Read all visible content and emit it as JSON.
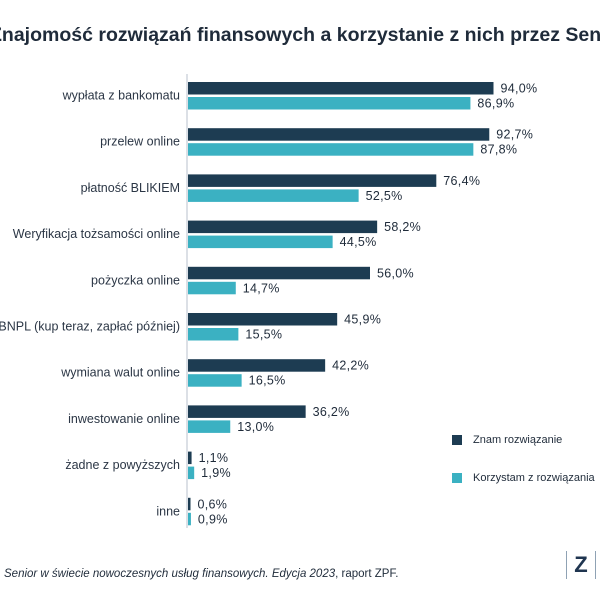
{
  "title": "Znajomość rozwiązań finansowych a korzystanie z nich przez Seniorów",
  "chart_data": {
    "type": "bar",
    "orientation": "horizontal",
    "title": "Znajomość rozwiązań finansowych a korzystanie z nich przez Seniorów",
    "categories": [
      "wypłata z bankomatu",
      "przelew online",
      "płatność BLIKIEM",
      "Weryfikacja tożsamości online",
      "pożyczka online",
      "BNPL (kup teraz, zapłać później)",
      "wymiana walut online",
      "inwestowanie online",
      "żadne z powyższych",
      "inne"
    ],
    "series": [
      {
        "name": "Znam rozwiązanie",
        "color": "#1d3c52",
        "values": [
          94.0,
          92.7,
          76.4,
          58.2,
          56.0,
          45.9,
          42.2,
          36.2,
          1.1,
          0.6
        ],
        "labels": [
          "94,0%",
          "92,7%",
          "76,4%",
          "58,2%",
          "56,0%",
          "45,9%",
          "42,2%",
          "36,2%",
          "1,1%",
          "0,6%"
        ]
      },
      {
        "name": "Korzystam z rozwiązania",
        "color": "#3bb1c2",
        "values": [
          86.9,
          87.8,
          52.5,
          44.5,
          14.7,
          15.5,
          16.5,
          13.0,
          1.9,
          0.9
        ],
        "labels": [
          "86,9%",
          "87,8%",
          "52,5%",
          "44,5%",
          "14,7%",
          "15,5%",
          "16,5%",
          "13,0%",
          "1,9%",
          "0,9%"
        ]
      }
    ],
    "xlim": [
      0,
      100
    ],
    "grid": false,
    "legend_position": "bottom-right"
  },
  "legend": [
    {
      "label": "Znam rozwiązanie",
      "color": "#1d3c52"
    },
    {
      "label": "Korzystam z rozwiązania",
      "color": "#3bb1c2"
    }
  ],
  "source": {
    "title": "Senior w świecie nowoczesnych usług finansowych. Edycja 2023",
    "suffix": ", raport ZPF."
  },
  "logo": "Z"
}
